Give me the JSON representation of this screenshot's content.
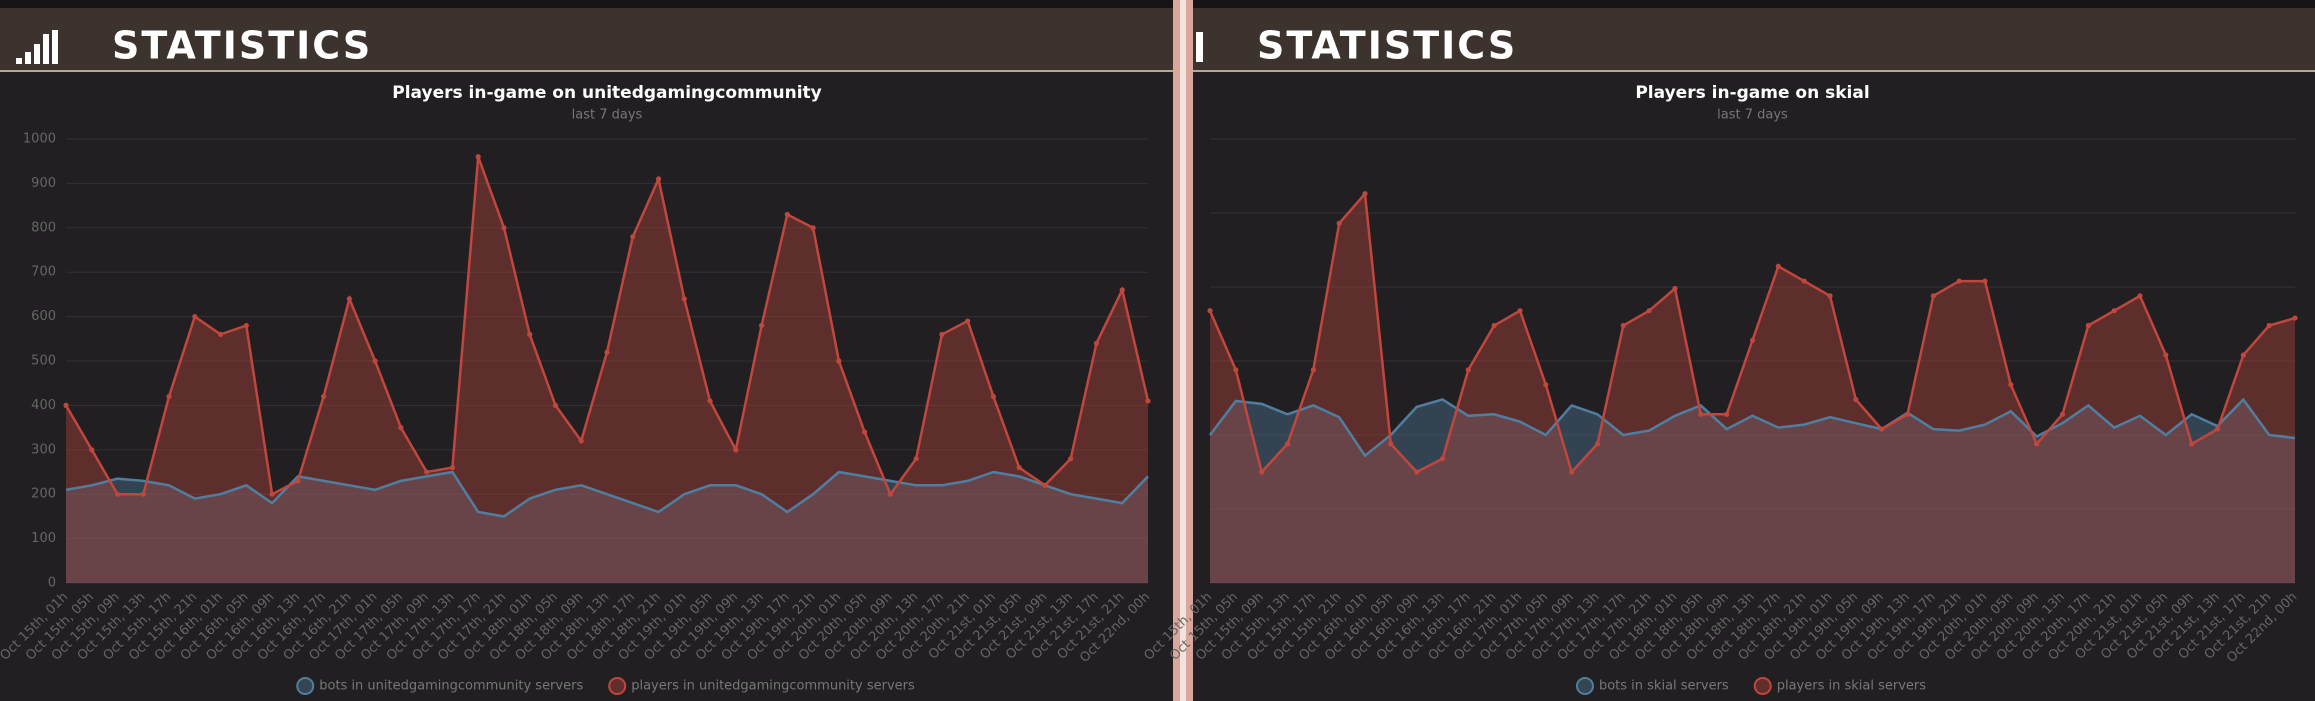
{
  "panels": [
    {
      "header": "STATISTICS"
    },
    {
      "header": "STATISTICS"
    }
  ],
  "chart_data": [
    {
      "type": "line",
      "title": "Players in-game on unitedgamingcommunity",
      "subtitle": "last 7 days",
      "categories": [
        "Oct 15th, 01h",
        "Oct 15th, 05h",
        "Oct 15th, 09h",
        "Oct 15th, 13h",
        "Oct 15th, 17h",
        "Oct 15th, 21h",
        "Oct 16th, 01h",
        "Oct 16th, 05h",
        "Oct 16th, 09h",
        "Oct 16th, 13h",
        "Oct 16th, 17h",
        "Oct 16th, 21h",
        "Oct 17th, 01h",
        "Oct 17th, 05h",
        "Oct 17th, 09h",
        "Oct 17th, 13h",
        "Oct 17th, 17h",
        "Oct 17th, 21h",
        "Oct 18th, 01h",
        "Oct 18th, 05h",
        "Oct 18th, 09h",
        "Oct 18th, 13h",
        "Oct 18th, 17h",
        "Oct 18th, 21h",
        "Oct 19th, 01h",
        "Oct 19th, 05h",
        "Oct 19th, 09h",
        "Oct 19th, 13h",
        "Oct 19th, 17h",
        "Oct 19th, 21h",
        "Oct 20th, 01h",
        "Oct 20th, 05h",
        "Oct 20th, 09h",
        "Oct 20th, 13h",
        "Oct 20th, 17h",
        "Oct 20th, 21h",
        "Oct 21st, 01h",
        "Oct 21st, 05h",
        "Oct 21st, 09h",
        "Oct 21st, 13h",
        "Oct 21st, 17h",
        "Oct 21st, 21h",
        "Oct 22nd, 00h"
      ],
      "series": [
        {
          "name": "bots in unitedgamingcommunity servers",
          "color": "#4f7fa0",
          "values": [
            210,
            220,
            235,
            230,
            220,
            190,
            200,
            220,
            180,
            240,
            230,
            220,
            210,
            230,
            240,
            250,
            160,
            150,
            190,
            210,
            220,
            200,
            180,
            160,
            200,
            220,
            220,
            200,
            160,
            200,
            250,
            240,
            230,
            220,
            220,
            230,
            250,
            240,
            220,
            200,
            190,
            180,
            240
          ]
        },
        {
          "name": "players in unitedgamingcommunity servers",
          "color": "#c0473d",
          "values": [
            400,
            300,
            200,
            200,
            420,
            600,
            560,
            580,
            200,
            230,
            420,
            640,
            500,
            350,
            250,
            260,
            960,
            800,
            560,
            400,
            320,
            520,
            780,
            910,
            640,
            410,
            300,
            580,
            830,
            800,
            500,
            340,
            200,
            280,
            560,
            590,
            420,
            260,
            220,
            280,
            540,
            660,
            410
          ]
        }
      ],
      "ylim": [
        0,
        1000
      ],
      "yticks": [
        0,
        100,
        200,
        300,
        400,
        500,
        600,
        700,
        800,
        900,
        1000
      ],
      "ytick_labels": true
    },
    {
      "type": "line",
      "title": "Players in-game on skial",
      "subtitle": "last 7 days",
      "categories": [
        "Oct 15th, 01h",
        "Oct 15th, 05h",
        "Oct 15th, 09h",
        "Oct 15th, 13h",
        "Oct 15th, 17h",
        "Oct 15th, 21h",
        "Oct 16th, 01h",
        "Oct 16th, 05h",
        "Oct 16th, 09h",
        "Oct 16th, 13h",
        "Oct 16th, 17h",
        "Oct 16th, 21h",
        "Oct 17th, 01h",
        "Oct 17th, 05h",
        "Oct 17th, 09h",
        "Oct 17th, 13h",
        "Oct 17th, 17h",
        "Oct 17th, 21h",
        "Oct 18th, 01h",
        "Oct 18th, 05h",
        "Oct 18th, 09h",
        "Oct 18th, 13h",
        "Oct 18th, 17h",
        "Oct 18th, 21h",
        "Oct 19th, 01h",
        "Oct 19th, 05h",
        "Oct 19th, 09h",
        "Oct 19th, 13h",
        "Oct 19th, 17h",
        "Oct 19th, 21h",
        "Oct 20th, 01h",
        "Oct 20th, 05h",
        "Oct 20th, 09h",
        "Oct 20th, 13h",
        "Oct 20th, 17h",
        "Oct 20th, 21h",
        "Oct 21st, 01h",
        "Oct 21st, 05h",
        "Oct 21st, 09h",
        "Oct 21st, 13h",
        "Oct 21st, 17h",
        "Oct 21st, 21h",
        "Oct 22nd, 00h"
      ],
      "series": [
        {
          "name": "bots in skial servers",
          "color": "#4f7fa0",
          "values": [
            1000,
            1230,
            1210,
            1140,
            1200,
            1120,
            860,
            1000,
            1190,
            1240,
            1130,
            1140,
            1090,
            1000,
            1200,
            1140,
            1000,
            1030,
            1130,
            1200,
            1040,
            1130,
            1050,
            1070,
            1120,
            1080,
            1040,
            1150,
            1040,
            1030,
            1070,
            1160,
            990,
            1080,
            1200,
            1050,
            1130,
            1000,
            1140,
            1060,
            1240,
            1000,
            980
          ]
        },
        {
          "name": "players in skial servers",
          "color": "#c0473d",
          "values": [
            1840,
            1440,
            750,
            940,
            1440,
            2430,
            2630,
            940,
            750,
            840,
            1440,
            1740,
            1840,
            1340,
            750,
            940,
            1740,
            1840,
            1990,
            1140,
            1140,
            1640,
            2140,
            2040,
            1940,
            1240,
            1040,
            1140,
            1940,
            2040,
            2040,
            1340,
            940,
            1140,
            1740,
            1840,
            1940,
            1540,
            940,
            1040,
            1540,
            1740,
            1790
          ]
        }
      ],
      "ylim": [
        0,
        3000
      ],
      "yticks": [
        0,
        500,
        1000,
        1500,
        2000,
        2500,
        3000
      ],
      "ytick_labels": false
    }
  ]
}
